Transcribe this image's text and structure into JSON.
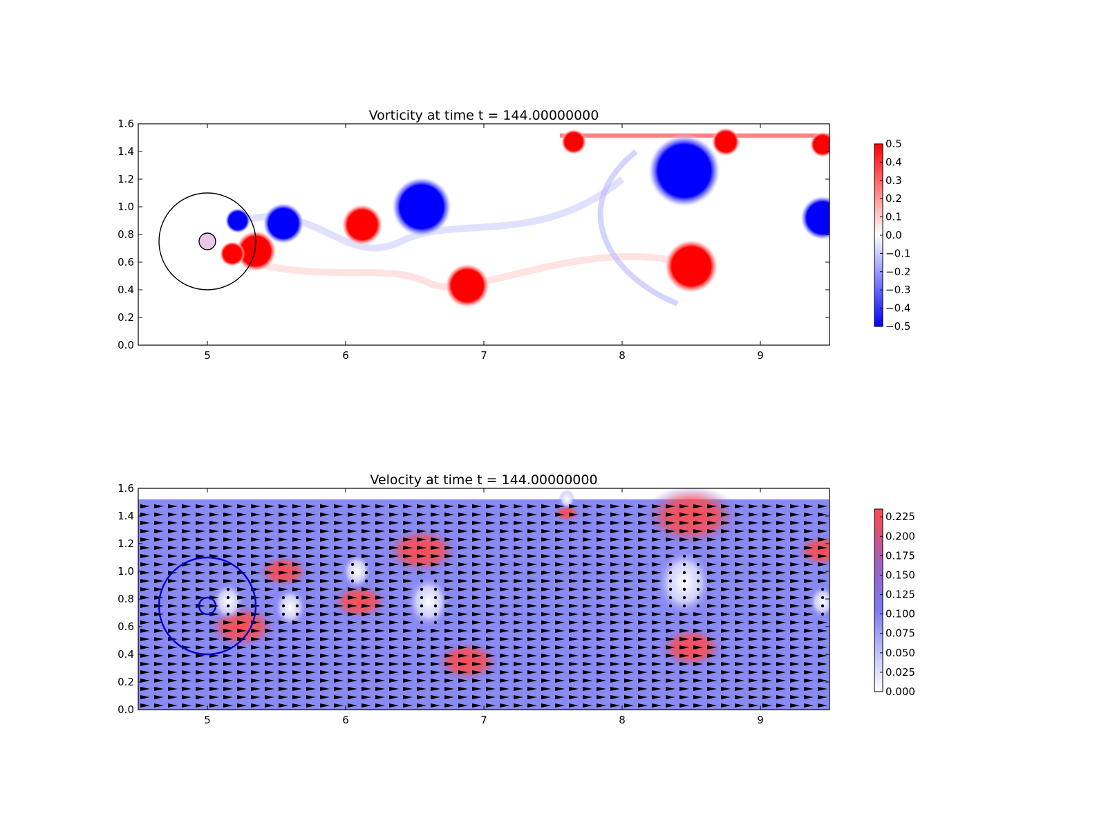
{
  "chart_data": [
    {
      "type": "heatmap",
      "title": "Vorticity at time t =   144.00000000",
      "xlim": [
        4.5,
        9.5
      ],
      "ylim": [
        0.0,
        1.6
      ],
      "xticks": [
        "5",
        "6",
        "7",
        "8",
        "9"
      ],
      "yticks": [
        "0.0",
        "0.2",
        "0.4",
        "0.6",
        "0.8",
        "1.0",
        "1.2",
        "1.4",
        "1.6"
      ],
      "colormap": "bwr",
      "color_range": [
        -0.5,
        0.5
      ],
      "colorbar_ticks": [
        "0.5",
        "0.4",
        "0.3",
        "0.2",
        "0.1",
        "0.0",
        "−0.1",
        "−0.2",
        "−0.3",
        "−0.4",
        "−0.5"
      ],
      "colors": {
        "positive": "#ff0000",
        "negative": "#0000ff",
        "zero": "#ffffff"
      },
      "field_top": 1.52,
      "obstacle": {
        "cx": 5.0,
        "cy": 0.75,
        "r": 0.06,
        "color": "#000000"
      },
      "outer_circle": {
        "cx": 5.0,
        "cy": 0.75,
        "r": 0.35,
        "color": "#000000"
      },
      "vortices": [
        {
          "x": 5.55,
          "y": 0.88,
          "sign": -1,
          "r": 0.13
        },
        {
          "x": 5.35,
          "y": 0.68,
          "sign": 1,
          "r": 0.13
        },
        {
          "x": 5.22,
          "y": 0.9,
          "sign": -1,
          "r": 0.08
        },
        {
          "x": 5.18,
          "y": 0.66,
          "sign": 1,
          "r": 0.08
        },
        {
          "x": 6.12,
          "y": 0.87,
          "sign": 1,
          "r": 0.13
        },
        {
          "x": 6.55,
          "y": 1.0,
          "sign": -1,
          "r": 0.19
        },
        {
          "x": 6.88,
          "y": 0.43,
          "sign": 1,
          "r": 0.14
        },
        {
          "x": 8.45,
          "y": 1.26,
          "sign": -1,
          "r": 0.23
        },
        {
          "x": 8.5,
          "y": 0.57,
          "sign": 1,
          "r": 0.17
        },
        {
          "x": 9.45,
          "y": 0.92,
          "sign": -1,
          "r": 0.14
        },
        {
          "x": 9.45,
          "y": 1.45,
          "sign": 1,
          "r": 0.08
        },
        {
          "x": 7.65,
          "y": 1.47,
          "sign": 1,
          "r": 0.08
        },
        {
          "x": 8.75,
          "y": 1.47,
          "sign": 1,
          "r": 0.09
        }
      ]
    },
    {
      "type": "heatmap",
      "title": "Velocity at time t =   144.00000000",
      "xlim": [
        4.5,
        9.5
      ],
      "ylim": [
        0.0,
        1.6
      ],
      "xticks": [
        "5",
        "6",
        "7",
        "8",
        "9"
      ],
      "yticks": [
        "0.0",
        "0.2",
        "0.4",
        "0.6",
        "0.8",
        "1.0",
        "1.2",
        "1.4",
        "1.6"
      ],
      "colormap": "coolwarm-like",
      "color_range": [
        0.0,
        0.235
      ],
      "colorbar_ticks": [
        "0.225",
        "0.200",
        "0.175",
        "0.150",
        "0.125",
        "0.100",
        "0.075",
        "0.050",
        "0.025",
        "0.000"
      ],
      "colors": {
        "low": "#ffffff",
        "mid": "#7b7bf2",
        "high": "#ff4a4a"
      },
      "background_speed": 0.1,
      "field_top": 1.52,
      "obstacle": {
        "cx": 5.0,
        "cy": 0.75,
        "r": 0.06,
        "color": "#0000cc"
      },
      "outer_circle": {
        "cx": 5.0,
        "cy": 0.75,
        "r": 0.35,
        "color": "#0000cc"
      },
      "quiver": {
        "x_start": 4.5,
        "x_end": 9.5,
        "dx": 0.1,
        "y_start": 0.0,
        "y_end": 1.5,
        "dy": 0.06,
        "color": "#000000"
      },
      "fast_regions": [
        {
          "x": 5.55,
          "y": 1.0,
          "r": 0.12
        },
        {
          "x": 5.25,
          "y": 0.6,
          "r": 0.16
        },
        {
          "x": 6.1,
          "y": 0.78,
          "r": 0.13
        },
        {
          "x": 6.55,
          "y": 1.15,
          "r": 0.17
        },
        {
          "x": 6.88,
          "y": 0.35,
          "r": 0.15
        },
        {
          "x": 8.5,
          "y": 1.4,
          "r": 0.22
        },
        {
          "x": 8.5,
          "y": 0.45,
          "r": 0.15
        },
        {
          "x": 9.45,
          "y": 1.15,
          "r": 0.12
        },
        {
          "x": 7.6,
          "y": 1.42,
          "r": 0.06
        }
      ],
      "slow_regions": [
        {
          "x": 5.15,
          "y": 0.78,
          "r": 0.12
        },
        {
          "x": 5.6,
          "y": 0.74,
          "r": 0.12
        },
        {
          "x": 6.08,
          "y": 1.0,
          "r": 0.11
        },
        {
          "x": 6.6,
          "y": 0.78,
          "r": 0.16
        },
        {
          "x": 8.45,
          "y": 0.92,
          "r": 0.21
        },
        {
          "x": 9.45,
          "y": 0.78,
          "r": 0.1
        },
        {
          "x": 7.6,
          "y": 1.52,
          "r": 0.06
        }
      ]
    }
  ]
}
